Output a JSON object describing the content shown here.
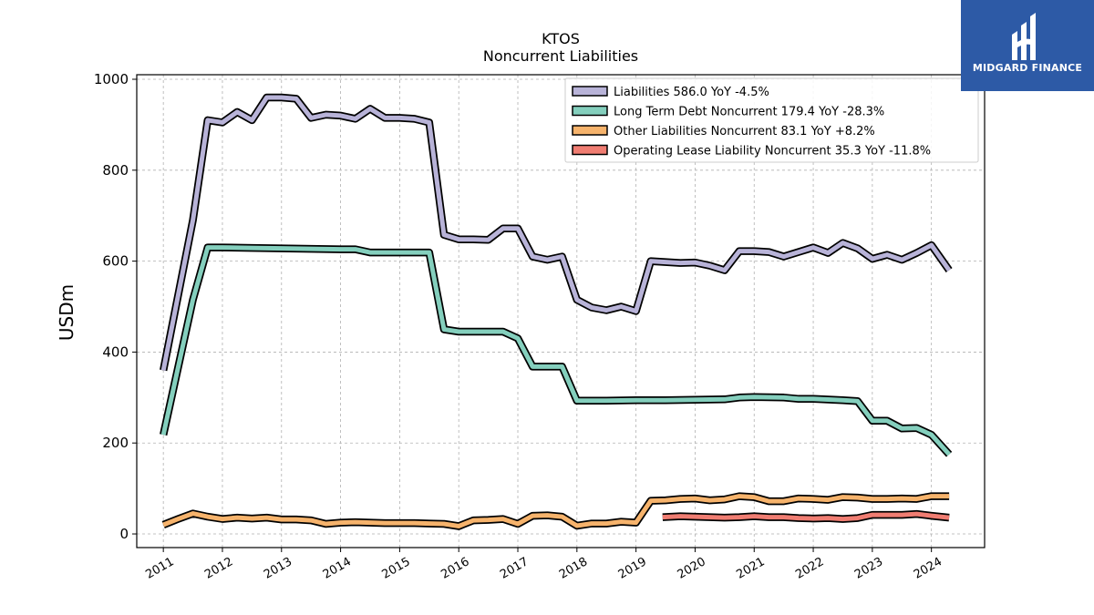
{
  "colors": {
    "liabilities": "#b8b3d8",
    "long_term_debt": "#84cfbd",
    "other_liabilities": "#f6b36c",
    "operating_lease": "#f07d72",
    "logo_bg": "#2d5aa6"
  },
  "logo": {
    "name": "MIDGARD FINANCE",
    "icon": "midgard-logo-icon"
  },
  "chart_data": {
    "type": "line",
    "title": "KTOS",
    "subtitle": "Noncurrent  Liabilities",
    "ylabel": "USDm",
    "xlabel": "",
    "ylim": [
      -30,
      1010
    ],
    "xlim": [
      2010.55,
      2024.9
    ],
    "yticks": [
      0,
      200,
      400,
      600,
      800,
      1000
    ],
    "xticks": [
      "2011",
      "2012",
      "2013",
      "2014",
      "2015",
      "2016",
      "2017",
      "2018",
      "2019",
      "2020",
      "2021",
      "2022",
      "2023",
      "2024"
    ],
    "grid": true,
    "legend_position": "top-right",
    "series": [
      {
        "name": "Liabilities",
        "legend": "Liabilities  586.0 YoY -4.5%",
        "color_key": "liabilities",
        "points": [
          [
            2011.0,
            360
          ],
          [
            2011.5,
            690
          ],
          [
            2011.75,
            910
          ],
          [
            2012.0,
            905
          ],
          [
            2012.25,
            928
          ],
          [
            2012.5,
            910
          ],
          [
            2012.75,
            960
          ],
          [
            2013.0,
            960
          ],
          [
            2013.25,
            957
          ],
          [
            2013.5,
            915
          ],
          [
            2013.75,
            922
          ],
          [
            2014.0,
            920
          ],
          [
            2014.25,
            913
          ],
          [
            2014.5,
            935
          ],
          [
            2014.75,
            915
          ],
          [
            2015.0,
            915
          ],
          [
            2015.25,
            913
          ],
          [
            2015.5,
            905
          ],
          [
            2015.75,
            658
          ],
          [
            2016.0,
            648
          ],
          [
            2016.25,
            648
          ],
          [
            2016.5,
            647
          ],
          [
            2016.75,
            672
          ],
          [
            2017.0,
            672
          ],
          [
            2017.25,
            610
          ],
          [
            2017.5,
            603
          ],
          [
            2017.75,
            610
          ],
          [
            2018.0,
            515
          ],
          [
            2018.25,
            498
          ],
          [
            2018.5,
            492
          ],
          [
            2018.75,
            500
          ],
          [
            2019.0,
            490
          ],
          [
            2019.25,
            600
          ],
          [
            2019.5,
            598
          ],
          [
            2019.75,
            596
          ],
          [
            2020.0,
            597
          ],
          [
            2020.25,
            590
          ],
          [
            2020.5,
            580
          ],
          [
            2020.75,
            622
          ],
          [
            2021.0,
            622
          ],
          [
            2021.25,
            620
          ],
          [
            2021.5,
            610
          ],
          [
            2021.75,
            620
          ],
          [
            2022.0,
            630
          ],
          [
            2022.25,
            618
          ],
          [
            2022.5,
            640
          ],
          [
            2022.75,
            628
          ],
          [
            2023.0,
            605
          ],
          [
            2023.25,
            614
          ],
          [
            2023.5,
            603
          ],
          [
            2023.75,
            618
          ],
          [
            2024.0,
            635
          ],
          [
            2024.3,
            580
          ]
        ]
      },
      {
        "name": "Long Term Debt Noncurrent",
        "legend": "Long Term Debt Noncurrent  179.4 YoY -28.3%",
        "color_key": "long_term_debt",
        "points": [
          [
            2011.0,
            218
          ],
          [
            2011.5,
            515
          ],
          [
            2011.75,
            630
          ],
          [
            2012.0,
            630
          ],
          [
            2012.5,
            629
          ],
          [
            2013.0,
            628
          ],
          [
            2013.5,
            627
          ],
          [
            2014.0,
            626
          ],
          [
            2014.25,
            626
          ],
          [
            2014.5,
            619
          ],
          [
            2015.0,
            619
          ],
          [
            2015.5,
            619
          ],
          [
            2015.75,
            450
          ],
          [
            2016.0,
            445
          ],
          [
            2016.5,
            445
          ],
          [
            2016.75,
            445
          ],
          [
            2017.0,
            430
          ],
          [
            2017.25,
            368
          ],
          [
            2017.5,
            368
          ],
          [
            2017.75,
            368
          ],
          [
            2018.0,
            293
          ],
          [
            2018.5,
            293
          ],
          [
            2019.0,
            294
          ],
          [
            2019.5,
            294
          ],
          [
            2020.0,
            295
          ],
          [
            2020.5,
            296
          ],
          [
            2020.75,
            300
          ],
          [
            2021.0,
            301
          ],
          [
            2021.5,
            300
          ],
          [
            2021.75,
            297
          ],
          [
            2022.0,
            297
          ],
          [
            2022.5,
            294
          ],
          [
            2022.75,
            292
          ],
          [
            2023.0,
            249
          ],
          [
            2023.25,
            249
          ],
          [
            2023.5,
            232
          ],
          [
            2023.75,
            233
          ],
          [
            2024.0,
            218
          ],
          [
            2024.3,
            175
          ]
        ]
      },
      {
        "name": "Other Liabilities Noncurrent",
        "legend": "Other Liabilities Noncurrent  83.1 YoY +8.2%",
        "color_key": "other_liabilities",
        "points": [
          [
            2011.0,
            20
          ],
          [
            2011.25,
            33
          ],
          [
            2011.5,
            45
          ],
          [
            2011.75,
            38
          ],
          [
            2012.0,
            33
          ],
          [
            2012.25,
            36
          ],
          [
            2012.5,
            34
          ],
          [
            2012.75,
            36
          ],
          [
            2013.0,
            32
          ],
          [
            2013.25,
            32
          ],
          [
            2013.5,
            30
          ],
          [
            2013.75,
            22
          ],
          [
            2014.0,
            25
          ],
          [
            2014.25,
            26
          ],
          [
            2014.5,
            25
          ],
          [
            2014.75,
            24
          ],
          [
            2015.0,
            24
          ],
          [
            2015.25,
            24
          ],
          [
            2015.5,
            23
          ],
          [
            2015.75,
            22
          ],
          [
            2016.0,
            17
          ],
          [
            2016.25,
            30
          ],
          [
            2016.5,
            31
          ],
          [
            2016.75,
            33
          ],
          [
            2017.0,
            22
          ],
          [
            2017.25,
            40
          ],
          [
            2017.5,
            41
          ],
          [
            2017.75,
            38
          ],
          [
            2018.0,
            18
          ],
          [
            2018.25,
            23
          ],
          [
            2018.5,
            23
          ],
          [
            2018.75,
            27
          ],
          [
            2019.0,
            25
          ],
          [
            2019.25,
            73
          ],
          [
            2019.5,
            74
          ],
          [
            2019.75,
            77
          ],
          [
            2020.0,
            78
          ],
          [
            2020.25,
            74
          ],
          [
            2020.5,
            76
          ],
          [
            2020.75,
            83
          ],
          [
            2021.0,
            81
          ],
          [
            2021.25,
            72
          ],
          [
            2021.5,
            72
          ],
          [
            2021.75,
            78
          ],
          [
            2022.0,
            77
          ],
          [
            2022.25,
            75
          ],
          [
            2022.5,
            81
          ],
          [
            2022.75,
            80
          ],
          [
            2023.0,
            77
          ],
          [
            2023.25,
            77
          ],
          [
            2023.5,
            78
          ],
          [
            2023.75,
            77
          ],
          [
            2024.0,
            83
          ],
          [
            2024.3,
            83
          ]
        ]
      },
      {
        "name": "Operating Lease Liability Noncurrent",
        "legend": "Operating Lease Liability Noncurrent  35.3 YoY -11.8%",
        "color_key": "operating_lease",
        "points": [
          [
            2019.45,
            37
          ],
          [
            2019.75,
            39
          ],
          [
            2020.0,
            38
          ],
          [
            2020.25,
            37
          ],
          [
            2020.5,
            36
          ],
          [
            2020.75,
            37
          ],
          [
            2021.0,
            39
          ],
          [
            2021.25,
            37
          ],
          [
            2021.5,
            37
          ],
          [
            2021.75,
            35
          ],
          [
            2022.0,
            34
          ],
          [
            2022.25,
            35
          ],
          [
            2022.5,
            33
          ],
          [
            2022.75,
            35
          ],
          [
            2023.0,
            42
          ],
          [
            2023.25,
            42
          ],
          [
            2023.5,
            42
          ],
          [
            2023.75,
            44
          ],
          [
            2024.0,
            40
          ],
          [
            2024.3,
            36
          ]
        ]
      }
    ]
  }
}
